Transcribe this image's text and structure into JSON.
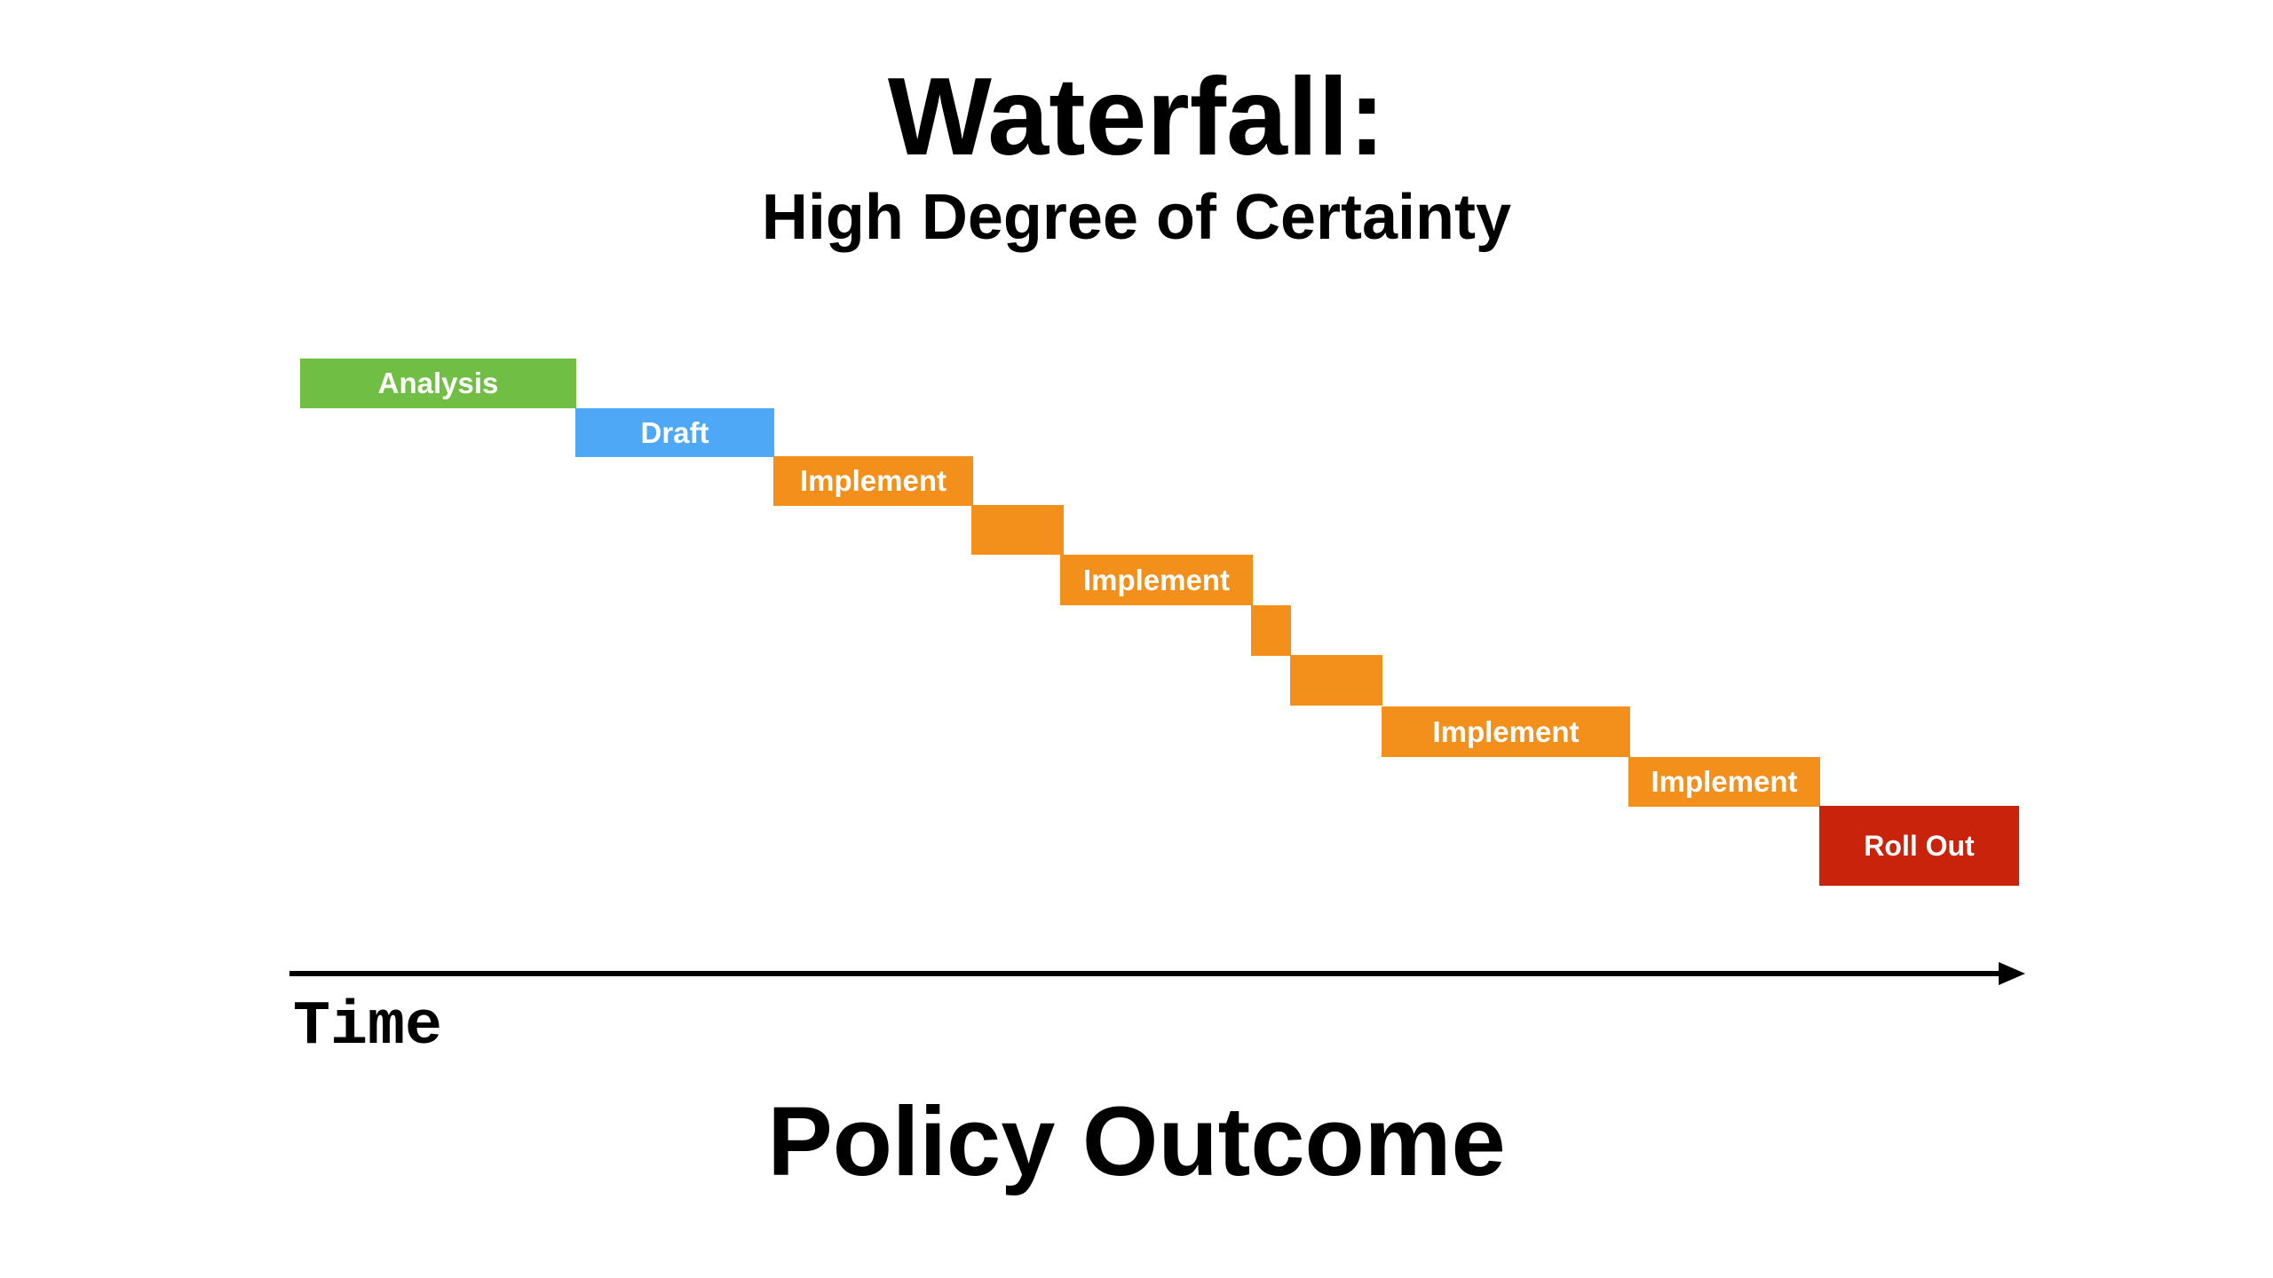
{
  "diagram": {
    "title": "Waterfall:",
    "subtitle": "High Degree of Certainty",
    "steps": [
      {
        "label": "Analysis",
        "color": "#70bf44"
      },
      {
        "label": "Draft",
        "color": "#4fa8f5"
      },
      {
        "label": "Implement",
        "color": "#f3901c"
      },
      {
        "label": "",
        "color": "#f3901c"
      },
      {
        "label": "Implement",
        "color": "#f3901c"
      },
      {
        "label": "",
        "color": "#f3901c"
      },
      {
        "label": "",
        "color": "#f3901c"
      },
      {
        "label": "Implement",
        "color": "#f3901c"
      },
      {
        "label": "Implement",
        "color": "#f3901c"
      },
      {
        "label": "Roll Out",
        "color": "#c9230b"
      }
    ],
    "axis_label": "Time",
    "outcome_label": "Policy Outcome"
  }
}
